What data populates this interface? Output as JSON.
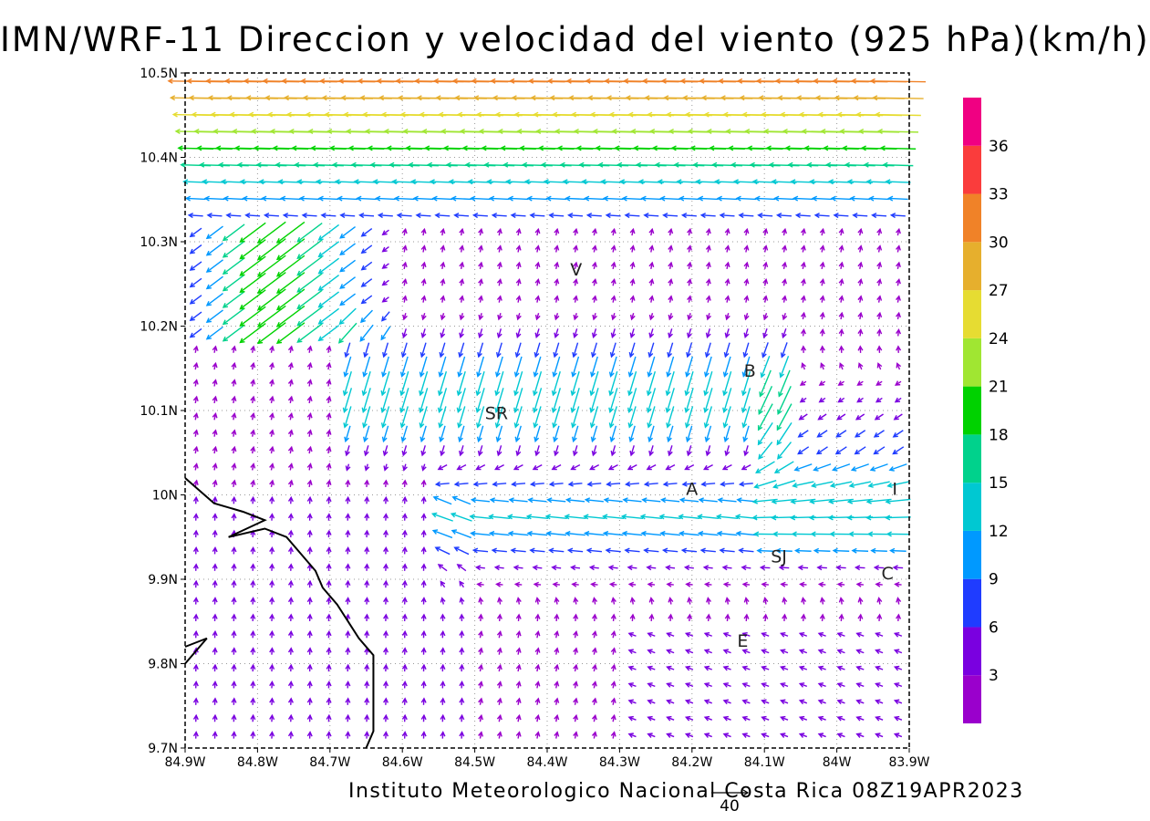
{
  "title": "IMN/WRF-11 Direccion y velocidad del viento (925 hPa)(km/h)",
  "footer": "Instituto Meteorologico Nacional Costa Rica 08Z19APR2023",
  "reference_vector_label": "40",
  "reference_vector_speed": 40,
  "map": {
    "lon_range": [
      -84.9,
      -83.9
    ],
    "lat_range": [
      9.7,
      10.5
    ],
    "x_tick_labels": [
      "84.9W",
      "84.8W",
      "84.7W",
      "84.6W",
      "84.5W",
      "84.4W",
      "84.3W",
      "84.2W",
      "84.1W",
      "84W",
      "83.9W"
    ],
    "y_tick_labels": [
      "9.7N",
      "9.8N",
      "9.9N",
      "10N",
      "10.1N",
      "10.2N",
      "10.3N",
      "10.4N",
      "10.5N"
    ],
    "grid": "dotted",
    "places": [
      {
        "label": "V",
        "lon": -84.36,
        "lat": 10.26
      },
      {
        "label": "SR",
        "lon": -84.47,
        "lat": 10.09
      },
      {
        "label": "B",
        "lon": -84.12,
        "lat": 10.14
      },
      {
        "label": "A",
        "lon": -84.2,
        "lat": 10.0
      },
      {
        "label": "I",
        "lon": -83.92,
        "lat": 10.0
      },
      {
        "label": "SJ",
        "lon": -84.08,
        "lat": 9.92
      },
      {
        "label": "C",
        "lon": -83.93,
        "lat": 9.9
      },
      {
        "label": "E",
        "lon": -84.13,
        "lat": 9.82
      }
    ],
    "coastline": [
      [
        -84.9,
        10.02
      ],
      [
        -84.86,
        9.99
      ],
      [
        -84.82,
        9.98
      ],
      [
        -84.79,
        9.97
      ],
      [
        -84.84,
        9.95
      ],
      [
        -84.79,
        9.96
      ],
      [
        -84.76,
        9.95
      ],
      [
        -84.74,
        9.93
      ],
      [
        -84.72,
        9.91
      ],
      [
        -84.71,
        9.89
      ],
      [
        -84.69,
        9.87
      ],
      [
        -84.66,
        9.83
      ],
      [
        -84.64,
        9.81
      ],
      [
        -84.64,
        9.76
      ],
      [
        -84.64,
        9.72
      ],
      [
        -84.65,
        9.7
      ]
    ],
    "coastline2": [
      [
        -84.9,
        9.82
      ],
      [
        -84.87,
        9.83
      ],
      [
        -84.9,
        9.8
      ]
    ]
  },
  "colorbar": {
    "tick_labels": [
      "3",
      "6",
      "9",
      "12",
      "15",
      "18",
      "21",
      "24",
      "27",
      "30",
      "33",
      "36"
    ],
    "colors": [
      "#9a00cc",
      "#7a00e0",
      "#1f3cff",
      "#0099ff",
      "#00c8d2",
      "#00d28c",
      "#00d200",
      "#a0e632",
      "#e6dc32",
      "#e6af2d",
      "#f08228",
      "#fa3c3c",
      "#f00082"
    ]
  }
}
